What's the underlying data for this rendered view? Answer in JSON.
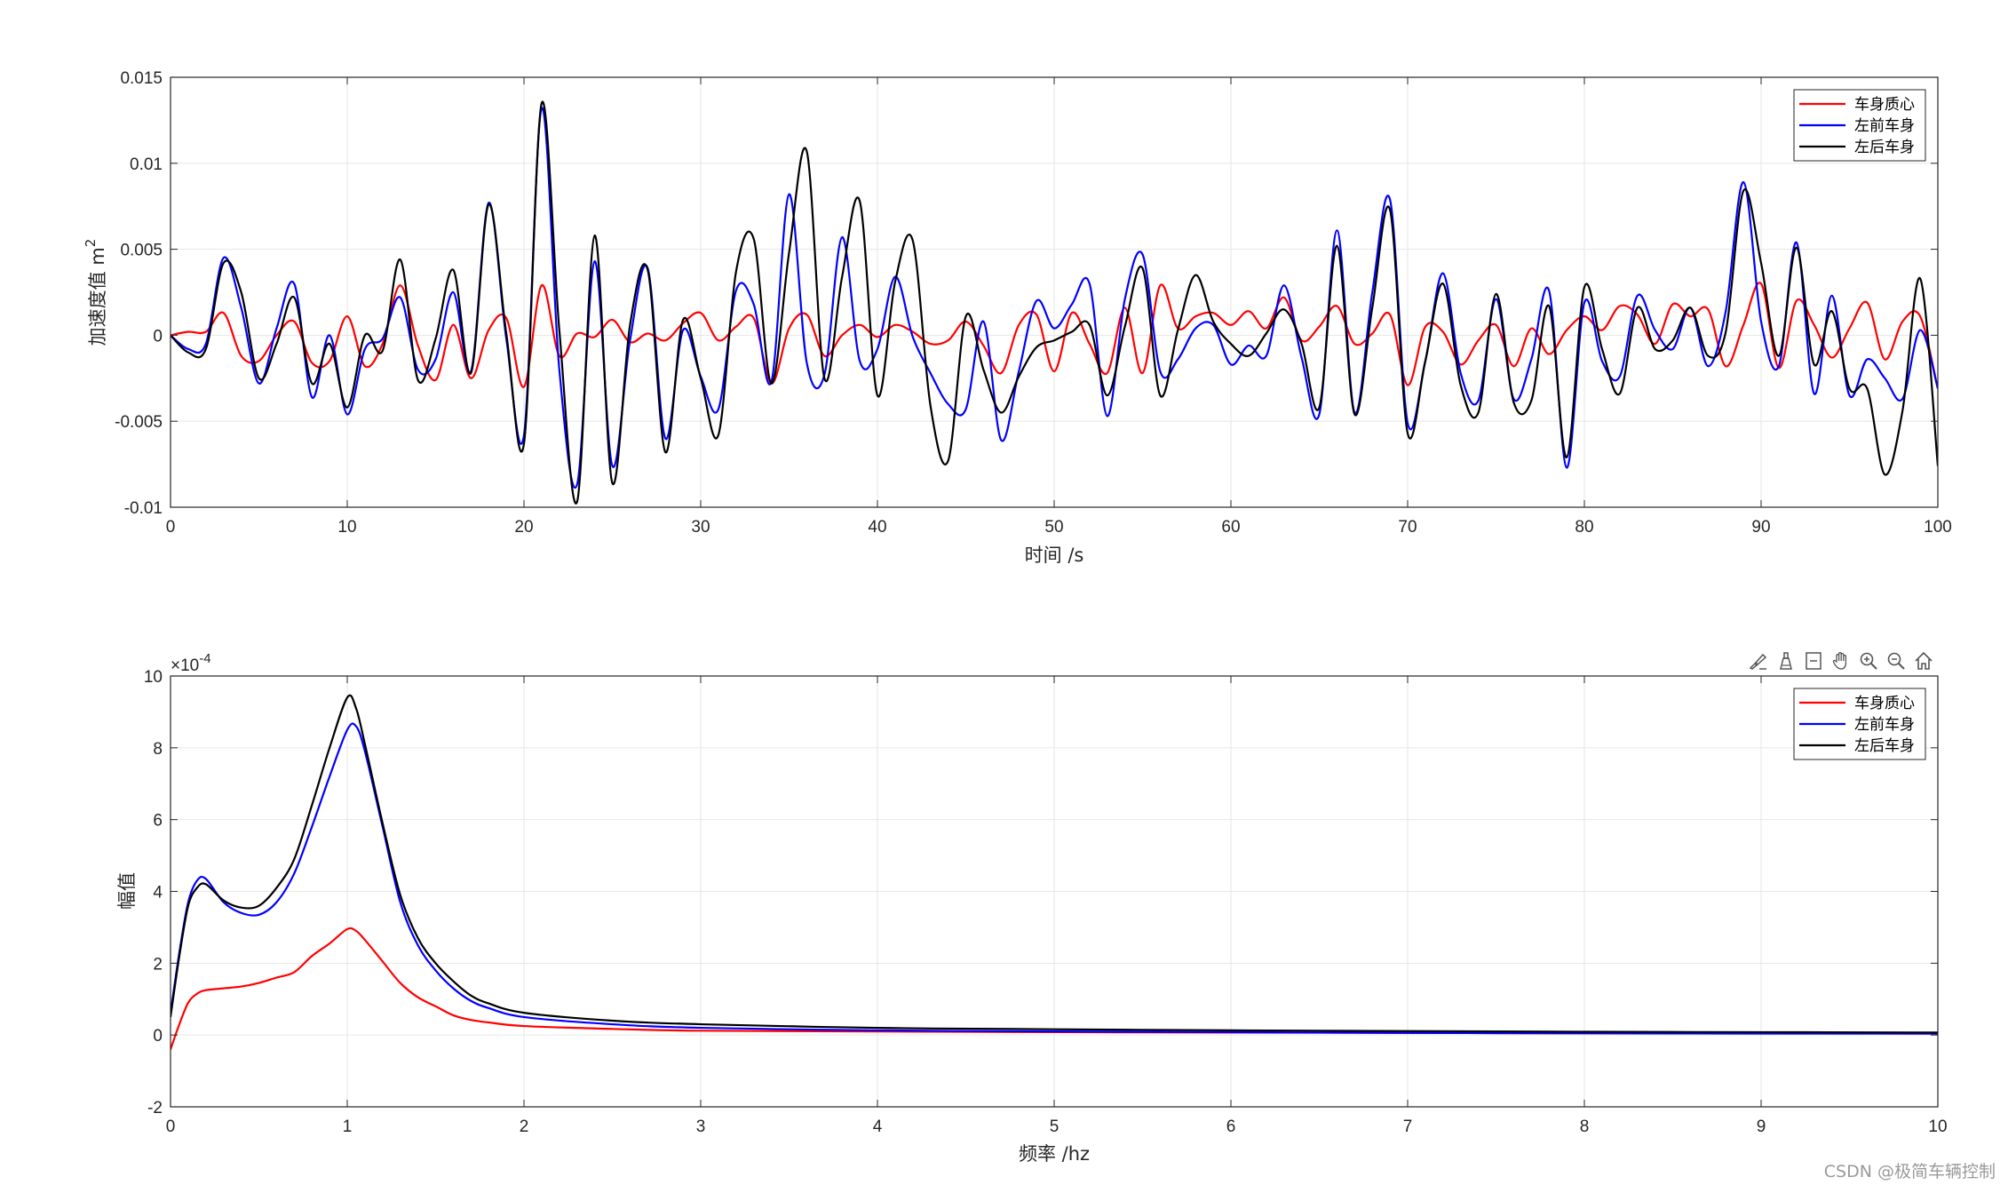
{
  "colors": {
    "red": "#ff0000",
    "blue": "#0000ff",
    "black": "#000000",
    "grid": "#e6e6e6",
    "axis": "#262626"
  },
  "watermark": "CSDN @极简车辆控制",
  "toolbar": {
    "icons": [
      "brush-icon",
      "data-tip-icon",
      "restore-icon",
      "pan-hand-icon",
      "zoom-in-icon",
      "zoom-out-icon",
      "home-icon"
    ]
  },
  "chart_data": [
    {
      "type": "line",
      "xlabel": "时间 /s",
      "ylabel": "加速度值 m",
      "ylabel_sup": "2",
      "xlim": [
        0,
        100
      ],
      "ylim": [
        -0.01,
        0.015
      ],
      "xticks": [
        0,
        10,
        20,
        30,
        40,
        50,
        60,
        70,
        80,
        90,
        100
      ],
      "xtick_labels": [
        "0",
        "10",
        "20",
        "30",
        "40",
        "50",
        "60",
        "70",
        "80",
        "90",
        "100"
      ],
      "yticks": [
        -0.01,
        -0.005,
        0,
        0.005,
        0.01,
        0.015
      ],
      "ytick_labels": [
        "-0.01",
        "-0.005",
        "0",
        "0.005",
        "0.01",
        "0.015"
      ],
      "grid": true,
      "legend_position": "top-right",
      "series": [
        {
          "name": "车身质心",
          "color": "#ff0000",
          "x": [
            0,
            1,
            2,
            3,
            4,
            5,
            6,
            7,
            8,
            9,
            10,
            11,
            12,
            13,
            14,
            15,
            16,
            17,
            18,
            19,
            20,
            21,
            22,
            23,
            24,
            25,
            26,
            27,
            28,
            29,
            30,
            31,
            32,
            33,
            34,
            35,
            36,
            37,
            38,
            39,
            40,
            41,
            42,
            43,
            44,
            45,
            46,
            47,
            48,
            49,
            50,
            51,
            52,
            53,
            54,
            55,
            56,
            57,
            58,
            59,
            60,
            61,
            62,
            63,
            64,
            65,
            66,
            67,
            68,
            69,
            70,
            71,
            72,
            73,
            74,
            75,
            76,
            77,
            78,
            79,
            80,
            81,
            82,
            83,
            84,
            85,
            86,
            87,
            88,
            89,
            90,
            91,
            92,
            93,
            94,
            95,
            96,
            97,
            98,
            99,
            100
          ],
          "y": [
            0,
            0.0002,
            0.0002,
            0.0013,
            -0.0012,
            -0.0015,
            0,
            0.0008,
            -0.0016,
            -0.0015,
            0.0011,
            -0.0018,
            -0.0005,
            0.0029,
            -0.0006,
            -0.0026,
            0.0006,
            -0.0025,
            0.0003,
            0.001,
            -0.003,
            0.0029,
            -0.0012,
            0.0001,
            -0.0001,
            0.0009,
            -0.0004,
            0.0001,
            -0.0003,
            0.0007,
            0.0013,
            -0.0003,
            0.0005,
            0.001,
            -0.0028,
            0.0004,
            0.0012,
            -0.0012,
            0.0,
            0.0006,
            -0.0001,
            0.0006,
            0.0002,
            -0.0005,
            -0.0003,
            0.0008,
            -0.0006,
            -0.0022,
            0.0006,
            0.0012,
            -0.0021,
            0.0013,
            -0.0005,
            -0.0022,
            0.0016,
            -0.0022,
            0.0029,
            0.0004,
            0.0011,
            0.0013,
            0.0006,
            0.0014,
            0.0004,
            0.0022,
            -0.0003,
            0.0005,
            0.0017,
            -0.0005,
            0.0001,
            0.0012,
            -0.0029,
            0.0005,
            0.0002,
            -0.0017,
            -0.0003,
            0.0006,
            -0.0018,
            0.0004,
            -0.0011,
            0.0003,
            0.0011,
            0.0003,
            0.0017,
            0.0012,
            -0.0005,
            0.0018,
            0.0011,
            0.0015,
            -0.0018,
            0.0006,
            0.003,
            -0.0019,
            0.002,
            0.0006,
            -0.0013,
            0.0004,
            0.0019,
            -0.0014,
            0.0008,
            0.0011,
            -0.0031
          ]
        },
        {
          "name": "左前车身",
          "color": "#0000ff",
          "x": [
            0,
            1,
            2,
            3,
            4,
            5,
            6,
            7,
            8,
            9,
            10,
            11,
            12,
            13,
            14,
            15,
            16,
            17,
            18,
            19,
            20,
            21,
            22,
            23,
            24,
            25,
            26,
            27,
            28,
            29,
            30,
            31,
            32,
            33,
            34,
            35,
            36,
            37,
            38,
            39,
            40,
            41,
            42,
            43,
            44,
            45,
            46,
            47,
            48,
            49,
            50,
            51,
            52,
            53,
            54,
            55,
            56,
            57,
            58,
            59,
            60,
            61,
            62,
            63,
            64,
            65,
            66,
            67,
            68,
            69,
            70,
            71,
            72,
            73,
            74,
            75,
            76,
            77,
            78,
            79,
            80,
            81,
            82,
            83,
            84,
            85,
            86,
            87,
            88,
            89,
            90,
            91,
            92,
            93,
            94,
            95,
            96,
            97,
            98,
            99,
            100
          ],
          "y": [
            0,
            -0.0008,
            -0.0005,
            0.0045,
            0.0016,
            -0.0028,
            0.0004,
            0.003,
            -0.0036,
            0.0,
            -0.0046,
            -0.0008,
            -0.0002,
            0.0022,
            -0.002,
            -0.0014,
            0.0025,
            -0.0021,
            0.0077,
            -0.0002,
            -0.0058,
            0.0132,
            -0.002,
            -0.0087,
            0.0043,
            -0.0076,
            -0.0003,
            0.0039,
            -0.006,
            0.0003,
            -0.0024,
            -0.0043,
            0.0026,
            0.0018,
            -0.0027,
            0.0082,
            -0.0016,
            -0.0023,
            0.0057,
            -0.0015,
            -0.0008,
            0.0034,
            -0.0001,
            -0.0022,
            -0.004,
            -0.0043,
            0.0008,
            -0.0061,
            -0.0021,
            0.002,
            0.0004,
            0.0018,
            0.003,
            -0.0047,
            0.0021,
            0.0047,
            -0.0021,
            -0.0014,
            0.0004,
            0.0006,
            -0.0017,
            -0.0006,
            -0.0012,
            0.0029,
            -0.0013,
            -0.0046,
            0.0061,
            -0.0045,
            0.0025,
            0.0079,
            -0.0051,
            -0.0015,
            0.0036,
            -0.0022,
            -0.0038,
            0.0021,
            -0.0037,
            -0.0014,
            0.0026,
            -0.0077,
            0.0019,
            -0.0015,
            -0.0024,
            0.0023,
            0.0003,
            -0.0008,
            0.0016,
            -0.0018,
            0.0014,
            0.0089,
            0.0008,
            -0.0018,
            0.0054,
            -0.0034,
            0.0023,
            -0.0035,
            -0.0014,
            -0.0025,
            -0.0037,
            0.0003,
            -0.0031
          ]
        },
        {
          "name": "左后车身",
          "color": "#000000",
          "x": [
            0,
            1,
            2,
            3,
            4,
            5,
            6,
            7,
            8,
            9,
            10,
            11,
            12,
            13,
            14,
            15,
            16,
            17,
            18,
            19,
            20,
            21,
            22,
            23,
            24,
            25,
            26,
            27,
            28,
            29,
            30,
            31,
            32,
            33,
            34,
            35,
            36,
            37,
            38,
            39,
            40,
            41,
            42,
            43,
            44,
            45,
            46,
            47,
            48,
            49,
            50,
            51,
            52,
            53,
            54,
            55,
            56,
            57,
            58,
            59,
            60,
            61,
            62,
            63,
            64,
            65,
            66,
            67,
            68,
            69,
            70,
            71,
            72,
            73,
            74,
            75,
            76,
            77,
            78,
            79,
            80,
            81,
            82,
            83,
            84,
            85,
            86,
            87,
            88,
            89,
            90,
            91,
            92,
            93,
            94,
            95,
            96,
            97,
            98,
            99,
            100
          ],
          "y": [
            0,
            -0.001,
            -0.0008,
            0.0042,
            0.0025,
            -0.0025,
            -0.0005,
            0.0022,
            -0.0028,
            -0.0005,
            -0.0042,
            0.0,
            -0.0009,
            0.0044,
            -0.0026,
            -0.0002,
            0.0038,
            -0.0022,
            0.0076,
            0.0001,
            -0.0063,
            0.0135,
            0.0003,
            -0.0097,
            0.0058,
            -0.0086,
            0.0006,
            0.0038,
            -0.0068,
            0.0009,
            -0.0025,
            -0.0058,
            0.0037,
            0.0056,
            -0.0028,
            0.0048,
            0.0107,
            -0.0025,
            0.0034,
            0.0078,
            -0.0035,
            0.0031,
            0.0055,
            -0.0041,
            -0.0073,
            0.0011,
            -0.002,
            -0.0045,
            -0.0024,
            -0.0007,
            -0.0003,
            0.0002,
            0.0006,
            -0.0035,
            0.0005,
            0.0039,
            -0.0035,
            0.0003,
            0.0035,
            0.0008,
            -0.0005,
            -0.0012,
            0.0001,
            0.0015,
            -0.0005,
            -0.0042,
            0.0052,
            -0.0046,
            0.0016,
            0.0073,
            -0.0057,
            -0.0015,
            0.003,
            -0.0029,
            -0.0045,
            0.0024,
            -0.0039,
            -0.0038,
            0.0017,
            -0.0071,
            0.0028,
            -0.0008,
            -0.0034,
            0.0016,
            -0.0008,
            -0.0003,
            0.0016,
            -0.0012,
            0.0002,
            0.0084,
            0.0042,
            -0.0012,
            0.0051,
            -0.0017,
            0.0014,
            -0.0031,
            -0.0031,
            -0.0081,
            -0.0044,
            0.0033,
            -0.0076
          ]
        }
      ]
    },
    {
      "type": "line",
      "xlabel": "频率 /hz",
      "ylabel": "幅值",
      "exponent_label": "×10",
      "exponent_power": "-4",
      "xlim": [
        0,
        10
      ],
      "ylim": [
        -2,
        10
      ],
      "xticks": [
        0,
        1,
        2,
        3,
        4,
        5,
        6,
        7,
        8,
        9,
        10
      ],
      "xtick_labels": [
        "0",
        "1",
        "2",
        "3",
        "4",
        "5",
        "6",
        "7",
        "8",
        "9",
        "10"
      ],
      "yticks": [
        -2,
        0,
        2,
        4,
        6,
        8,
        10
      ],
      "ytick_labels": [
        "-2",
        "0",
        "2",
        "4",
        "6",
        "8",
        "10"
      ],
      "grid": true,
      "legend_position": "top-right",
      "series": [
        {
          "name": "车身质心",
          "color": "#ff0000",
          "x": [
            0,
            0.05,
            0.1,
            0.15,
            0.2,
            0.3,
            0.4,
            0.5,
            0.6,
            0.7,
            0.8,
            0.9,
            1.0,
            1.05,
            1.1,
            1.2,
            1.3,
            1.4,
            1.5,
            1.6,
            1.7,
            1.8,
            2.0,
            2.5,
            3,
            4,
            5,
            6,
            7,
            8,
            9,
            10
          ],
          "y": [
            -0.4,
            0.3,
            0.9,
            1.15,
            1.25,
            1.3,
            1.35,
            1.45,
            1.6,
            1.75,
            2.2,
            2.55,
            2.95,
            2.9,
            2.65,
            2.05,
            1.45,
            1.05,
            0.8,
            0.55,
            0.42,
            0.35,
            0.25,
            0.17,
            0.12,
            0.1,
            0.08,
            0.07,
            0.06,
            0.05,
            0.05,
            0.04
          ]
        },
        {
          "name": "左前车身",
          "color": "#0000ff",
          "x": [
            0,
            0.05,
            0.1,
            0.15,
            0.2,
            0.3,
            0.4,
            0.5,
            0.6,
            0.7,
            0.8,
            0.9,
            1.0,
            1.05,
            1.1,
            1.2,
            1.3,
            1.4,
            1.5,
            1.6,
            1.7,
            1.8,
            2.0,
            2.5,
            3,
            4,
            5,
            6,
            7,
            8,
            9,
            10
          ],
          "y": [
            0.6,
            2.3,
            3.7,
            4.3,
            4.35,
            3.7,
            3.4,
            3.35,
            3.7,
            4.5,
            5.8,
            7.2,
            8.5,
            8.6,
            7.9,
            5.8,
            3.7,
            2.5,
            1.8,
            1.3,
            0.95,
            0.75,
            0.5,
            0.3,
            0.2,
            0.13,
            0.1,
            0.08,
            0.06,
            0.05,
            0.04,
            0.04
          ]
        },
        {
          "name": "左后车身",
          "color": "#000000",
          "x": [
            0,
            0.05,
            0.1,
            0.15,
            0.2,
            0.3,
            0.4,
            0.5,
            0.6,
            0.7,
            0.8,
            0.9,
            1.0,
            1.05,
            1.1,
            1.2,
            1.3,
            1.4,
            1.5,
            1.6,
            1.7,
            1.8,
            2.0,
            2.5,
            3,
            4,
            5,
            6,
            7,
            8,
            9,
            10
          ],
          "y": [
            0.5,
            2.2,
            3.6,
            4.1,
            4.2,
            3.75,
            3.55,
            3.6,
            4.1,
            4.9,
            6.4,
            8.0,
            9.4,
            9.1,
            8.1,
            5.9,
            3.9,
            2.7,
            2.0,
            1.5,
            1.1,
            0.88,
            0.62,
            0.4,
            0.3,
            0.2,
            0.16,
            0.13,
            0.11,
            0.09,
            0.08,
            0.07
          ]
        }
      ]
    }
  ]
}
